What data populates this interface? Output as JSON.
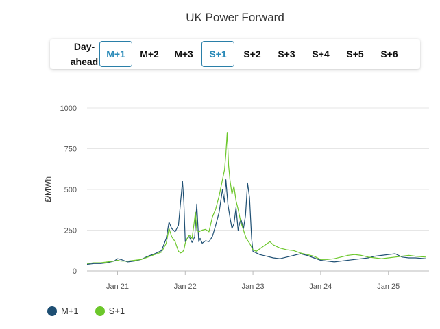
{
  "title": "UK Power Forward",
  "tabs": [
    {
      "label": "Day-ahead",
      "active": false
    },
    {
      "label": "M+1",
      "active": true
    },
    {
      "label": "M+2",
      "active": false
    },
    {
      "label": "M+3",
      "active": false
    },
    {
      "label": "S+1",
      "active": true
    },
    {
      "label": "S+2",
      "active": false
    },
    {
      "label": "S+3",
      "active": false
    },
    {
      "label": "S+4",
      "active": false
    },
    {
      "label": "S+5",
      "active": false
    },
    {
      "label": "S+6",
      "active": false
    }
  ],
  "colors": {
    "accent": "#2a8ab8",
    "m1": "#1e4f73",
    "s1": "#6cc72b"
  },
  "chart_data": {
    "type": "line",
    "ylabel": "£/MWh",
    "xlabel": "",
    "ylim": [
      0,
      1000
    ],
    "yticks": [
      0,
      250,
      500,
      750,
      1000
    ],
    "xlim": [
      2020.55,
      2025.6
    ],
    "xticks": [
      {
        "value": 2021.0,
        "label": "Jan 21"
      },
      {
        "value": 2022.0,
        "label": "Jan 22"
      },
      {
        "value": 2023.0,
        "label": "Jan 23"
      },
      {
        "value": 2024.0,
        "label": "Jan 24"
      },
      {
        "value": 2025.0,
        "label": "Jan 25"
      }
    ],
    "grid": true,
    "legend_position": "bottom-left",
    "series": [
      {
        "name": "M+1",
        "color": "#1e4f73",
        "x": [
          2020.55,
          2020.65,
          2020.75,
          2020.85,
          2020.95,
          2021.0,
          2021.05,
          2021.15,
          2021.25,
          2021.35,
          2021.45,
          2021.55,
          2021.65,
          2021.72,
          2021.76,
          2021.8,
          2021.85,
          2021.9,
          2021.93,
          2021.96,
          2021.98,
          2022.0,
          2022.03,
          2022.06,
          2022.1,
          2022.14,
          2022.17,
          2022.2,
          2022.22,
          2022.25,
          2022.3,
          2022.35,
          2022.4,
          2022.45,
          2022.5,
          2022.55,
          2022.58,
          2022.6,
          2022.63,
          2022.66,
          2022.69,
          2022.72,
          2022.75,
          2022.78,
          2022.82,
          2022.86,
          2022.89,
          2022.92,
          2022.95,
          2022.98,
          2023.0,
          2023.05,
          2023.1,
          2023.2,
          2023.3,
          2023.4,
          2023.5,
          2023.6,
          2023.7,
          2023.8,
          2023.9,
          2024.0,
          2024.1,
          2024.2,
          2024.3,
          2024.4,
          2024.5,
          2024.6,
          2024.7,
          2024.8,
          2024.9,
          2025.0,
          2025.1,
          2025.2,
          2025.3,
          2025.4,
          2025.55
        ],
        "y": [
          40,
          45,
          45,
          50,
          60,
          75,
          70,
          55,
          60,
          70,
          90,
          105,
          125,
          200,
          300,
          260,
          240,
          280,
          420,
          550,
          420,
          180,
          200,
          210,
          175,
          210,
          410,
          180,
          200,
          170,
          185,
          180,
          210,
          280,
          360,
          500,
          420,
          560,
          410,
          330,
          260,
          290,
          390,
          250,
          320,
          260,
          340,
          540,
          450,
          200,
          120,
          110,
          100,
          90,
          80,
          75,
          85,
          95,
          105,
          95,
          80,
          65,
          60,
          55,
          60,
          65,
          70,
          75,
          80,
          90,
          95,
          100,
          105,
          85,
          80,
          80,
          75
        ]
      },
      {
        "name": "S+1",
        "color": "#6cc72b",
        "x": [
          2020.55,
          2020.65,
          2020.75,
          2020.85,
          2020.95,
          2021.0,
          2021.05,
          2021.15,
          2021.25,
          2021.35,
          2021.45,
          2021.55,
          2021.65,
          2021.72,
          2021.76,
          2021.8,
          2021.85,
          2021.9,
          2021.93,
          2021.96,
          2021.98,
          2022.0,
          2022.03,
          2022.06,
          2022.1,
          2022.13,
          2022.15,
          2022.17,
          2022.2,
          2022.25,
          2022.3,
          2022.35,
          2022.4,
          2022.45,
          2022.5,
          2022.55,
          2022.58,
          2022.6,
          2022.62,
          2022.64,
          2022.66,
          2022.69,
          2022.72,
          2022.75,
          2022.78,
          2022.82,
          2022.86,
          2022.9,
          2022.95,
          2023.0,
          2023.05,
          2023.15,
          2023.25,
          2023.3,
          2023.4,
          2023.5,
          2023.6,
          2023.7,
          2023.8,
          2023.9,
          2024.0,
          2024.1,
          2024.2,
          2024.3,
          2024.4,
          2024.5,
          2024.6,
          2024.7,
          2024.8,
          2024.9,
          2025.0,
          2025.1,
          2025.2,
          2025.3,
          2025.4,
          2025.55
        ],
        "y": [
          45,
          50,
          50,
          55,
          60,
          65,
          60,
          60,
          65,
          70,
          85,
          100,
          115,
          170,
          260,
          210,
          180,
          120,
          110,
          115,
          130,
          170,
          200,
          220,
          200,
          290,
          360,
          250,
          240,
          250,
          255,
          240,
          330,
          380,
          460,
          560,
          620,
          720,
          850,
          650,
          560,
          470,
          520,
          430,
          380,
          300,
          250,
          200,
          170,
          130,
          120,
          150,
          180,
          160,
          140,
          130,
          125,
          110,
          100,
          90,
          70,
          70,
          75,
          85,
          95,
          100,
          95,
          85,
          80,
          75,
          80,
          85,
          90,
          95,
          90,
          85
        ]
      }
    ]
  },
  "legend": [
    {
      "label": "M+1",
      "color": "#1e4f73"
    },
    {
      "label": "S+1",
      "color": "#6cc72b"
    }
  ]
}
